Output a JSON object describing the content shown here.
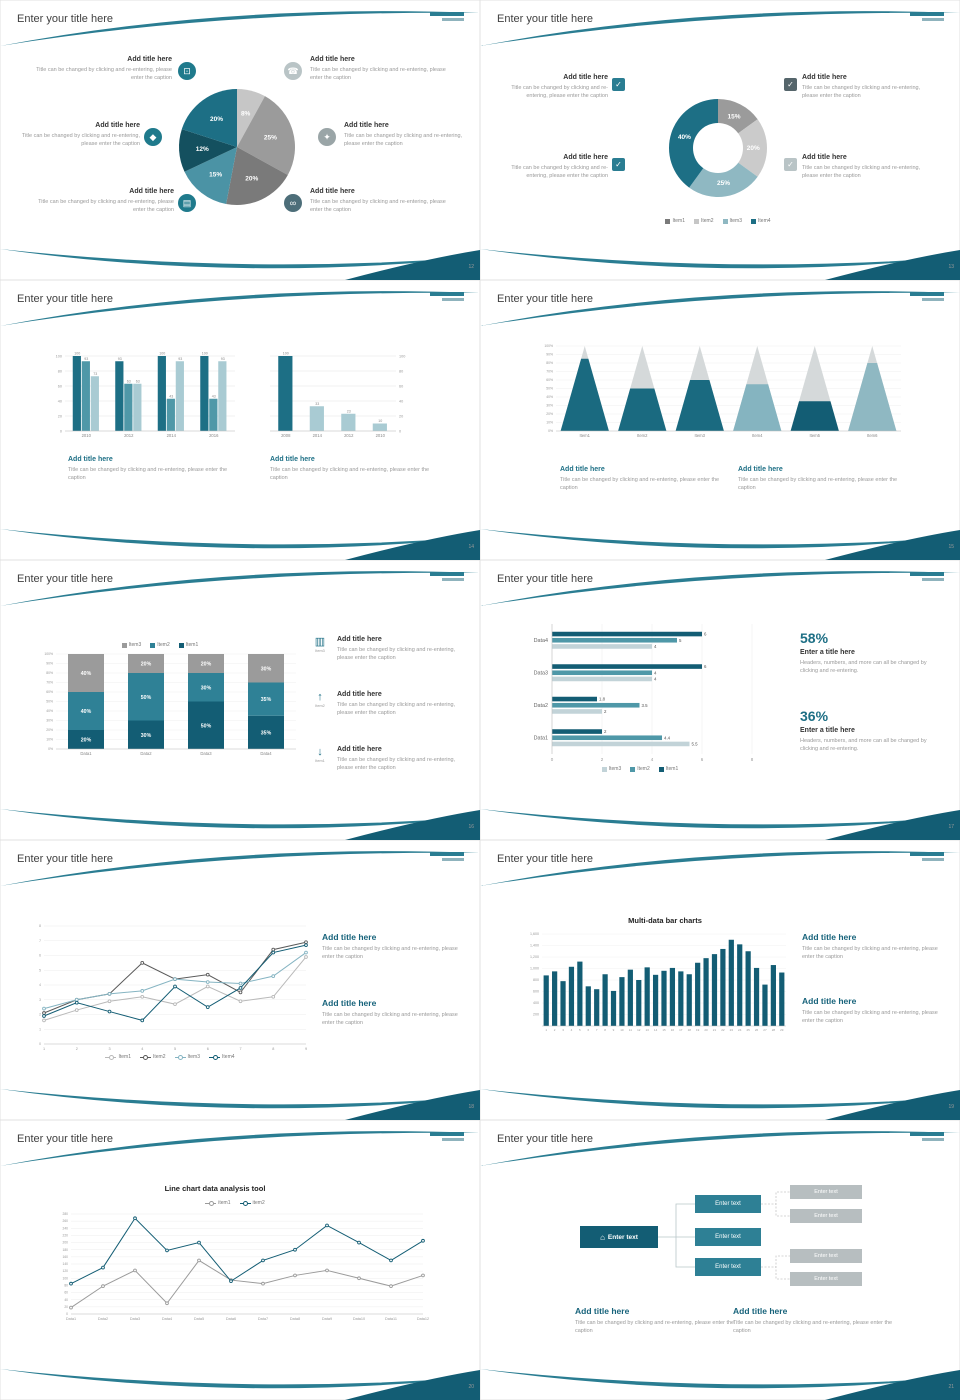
{
  "common": {
    "title": "Enter your title here",
    "add_title": "Add title here",
    "caption": "Title can be changed by clicking and re-entering, please enter the caption",
    "enter_text": "Enter text"
  },
  "icons": {
    "monitor": "⊡",
    "phone": "☎",
    "car": "◆",
    "lock": "✦",
    "book": "▤",
    "bike": "∞",
    "check": "✓",
    "chart": "▥",
    "upload": "↑",
    "download": "↓",
    "home": "⌂"
  },
  "theme": {
    "accent_teal": "#1d6f85",
    "teal_dark": "#135d74",
    "teal_mid": "#4f98a8",
    "teal_light": "#8fb8c2",
    "gray": "#9b9b9b"
  },
  "slides": [
    {
      "page_no": "12",
      "chart_data": {
        "type": "pie",
        "values": [
          8,
          25,
          20,
          15,
          12,
          20
        ],
        "labels": [
          "8%",
          "25%",
          "20%",
          "15%",
          "12%",
          "20%"
        ],
        "colors": [
          "#c6c6c6",
          "#9b9b9b",
          "#7a7a7a",
          "#4b93a5",
          "#14505f",
          "#1d6f85"
        ]
      }
    },
    {
      "page_no": "13",
      "chart_data": {
        "type": "donut",
        "values": [
          15,
          20,
          25,
          40
        ],
        "labels": [
          "15%",
          "20%",
          "25%",
          "40%"
        ],
        "colors": [
          "#9b9b9b",
          "#cbcbcb",
          "#8fb8c2",
          "#1d6f85"
        ],
        "legend": [
          {
            "label": "Item1",
            "color": "#7a7a7a"
          },
          {
            "label": "Item2",
            "color": "#c6c6c6"
          },
          {
            "label": "Item3",
            "color": "#8fb8c2"
          },
          {
            "label": "Item4",
            "color": "#1d6f85"
          }
        ]
      }
    },
    {
      "page_no": "14",
      "chart_data": [
        {
          "type": "bar",
          "categories": [
            "2010",
            "2012",
            "2014",
            "2016"
          ],
          "ylim": [
            0,
            100
          ],
          "yticks": [
            0,
            20,
            40,
            60,
            80,
            100
          ],
          "series": [
            {
              "name": "series1",
              "color": "#1d6f85",
              "values": [
                100,
                93,
                100,
                100
              ]
            },
            {
              "name": "series2",
              "color": "#4f98a8",
              "values": [
                93,
                63,
                43,
                43
              ]
            },
            {
              "name": "series3",
              "color": "#a9cbd3",
              "values": [
                73,
                63,
                93,
                93
              ]
            }
          ]
        },
        {
          "type": "bar",
          "categories": [
            "2008",
            "2014",
            "2012",
            "2010"
          ],
          "ylim": [
            0,
            100
          ],
          "yticks": [
            0,
            20,
            40,
            60,
            80,
            100
          ],
          "ylabels_side": "right",
          "series": [
            {
              "name": "series1",
              "colors": [
                "#1d6f85",
                "#a9cbd3",
                "#a9cbd3",
                "#a9cbd3"
              ],
              "values": [
                100,
                33,
                23,
                10
              ]
            }
          ]
        }
      ]
    },
    {
      "page_no": "15",
      "chart_data": {
        "type": "cone",
        "categories": [
          "Item1",
          "Item2",
          "Item3",
          "Item4",
          "Item5",
          "Item6"
        ],
        "values": [
          85,
          50,
          60,
          55,
          35,
          80
        ],
        "colors": [
          "#1a6a80",
          "#1a6a80",
          "#1a6a80",
          "#85b4c0",
          "#135d74",
          "#8fb8c2"
        ],
        "yticks": [
          "0%",
          "10%",
          "20%",
          "30%",
          "40%",
          "50%",
          "60%",
          "70%",
          "80%",
          "90%",
          "100%"
        ]
      }
    },
    {
      "page_no": "16",
      "chart_data": {
        "type": "stacked",
        "categories": [
          "Data1",
          "Data2",
          "Data3",
          "Data4"
        ],
        "series": [
          {
            "name": "Item1",
            "color": "#135d74",
            "values": [
              20,
              30,
              50,
              35
            ]
          },
          {
            "name": "Item2",
            "color": "#2f8196",
            "values": [
              40,
              50,
              30,
              35
            ]
          },
          {
            "name": "Item3",
            "color": "#9b9b9b",
            "values": [
              40,
              20,
              20,
              30
            ]
          }
        ],
        "yticks": [
          "0%",
          "10%",
          "20%",
          "30%",
          "40%",
          "50%",
          "60%",
          "70%",
          "80%",
          "90%",
          "100%"
        ],
        "legend": [
          {
            "label": "Item3",
            "color": "#9b9b9b"
          },
          {
            "label": "Item2",
            "color": "#2f8196"
          },
          {
            "label": "Item1",
            "color": "#135d74"
          }
        ]
      },
      "features": [
        {
          "icon_label": "Item3"
        },
        {
          "icon_label": "Item2"
        },
        {
          "icon_label": "Item1"
        }
      ]
    },
    {
      "page_no": "17",
      "chart_data": {
        "type": "hbar",
        "categories": [
          "Data1",
          "Data2",
          "Data3",
          "Data4"
        ],
        "series": [
          {
            "name": "Item1",
            "color": "#135d74",
            "values": [
              2,
              1.8,
              6,
              6
            ]
          },
          {
            "name": "Item2",
            "color": "#4f98a8",
            "values": [
              4.4,
              3.5,
              4,
              5
            ]
          },
          {
            "name": "Item3",
            "color": "#c2d3d8",
            "values": [
              5.5,
              2,
              4,
              4
            ]
          }
        ],
        "xticks": [
          0,
          2,
          4,
          6,
          8
        ],
        "legend": [
          {
            "label": "Item3",
            "color": "#c2d3d8"
          },
          {
            "label": "Item2",
            "color": "#4f98a8"
          },
          {
            "label": "Item1",
            "color": "#135d74"
          }
        ]
      },
      "stats": [
        {
          "value": "58%",
          "title": "Enter a title here",
          "text": "Headers, numbers, and more can all be changed by clicking and re-entering."
        },
        {
          "value": "36%",
          "title": "Enter a title here",
          "text": "Headers, numbers, and more can all be changed by clicking and re-entering."
        }
      ]
    },
    {
      "page_no": "18",
      "chart_data": {
        "type": "line",
        "x": [
          "1",
          "2",
          "3",
          "4",
          "5",
          "6",
          "7",
          "8",
          "9"
        ],
        "ylim": [
          0,
          8
        ],
        "yticks": [
          0,
          1,
          2,
          3,
          4,
          5,
          6,
          7,
          8
        ],
        "series": [
          {
            "name": "Item1",
            "color": "#b9b9b9",
            "values": [
              1.6,
              2.3,
              2.9,
              3.2,
              2.7,
              3.9,
              2.9,
              3.2,
              5.9
            ]
          },
          {
            "name": "Item2",
            "color": "#5a5a5a",
            "values": [
              2.1,
              3.0,
              3.4,
              5.5,
              4.4,
              4.7,
              3.5,
              6.4,
              6.9
            ]
          },
          {
            "name": "Item3",
            "color": "#85b4c2",
            "values": [
              2.4,
              3.0,
              3.4,
              3.6,
              4.4,
              4.2,
              4.1,
              4.6,
              6.2
            ]
          },
          {
            "name": "Item4",
            "color": "#135d74",
            "values": [
              1.9,
              2.8,
              2.2,
              1.6,
              3.9,
              2.5,
              3.8,
              6.2,
              6.7
            ]
          }
        ],
        "legend": [
          {
            "label": "Item1",
            "color": "#b9b9b9"
          },
          {
            "label": "Item2",
            "color": "#5a5a5a"
          },
          {
            "label": "Item3",
            "color": "#85b4c2"
          },
          {
            "label": "Item4",
            "color": "#135d74"
          }
        ]
      }
    },
    {
      "page_no": "19",
      "chart_title": "Multi-data bar charts",
      "chart_data": {
        "type": "dense-bar",
        "color": "#135d74",
        "values": [
          880,
          950,
          780,
          1030,
          1120,
          690,
          640,
          900,
          610,
          850,
          980,
          800,
          1020,
          890,
          960,
          1010,
          950,
          900,
          1100,
          1180,
          1250,
          1340,
          1500,
          1420,
          1300,
          1010,
          720,
          1060,
          930
        ],
        "x_labels": [
          "1",
          "2",
          "3",
          "4",
          "5",
          "6",
          "7",
          "8",
          "9",
          "10",
          "11",
          "12",
          "13",
          "14",
          "15",
          "16",
          "17",
          "18",
          "19",
          "20",
          "21",
          "22",
          "23",
          "24",
          "25",
          "26",
          "27",
          "28",
          "29"
        ],
        "yticks": [
          "200",
          "400",
          "600",
          "800",
          "1,000",
          "1,200",
          "1,400",
          "1,600"
        ]
      }
    },
    {
      "page_no": "20",
      "chart_title": "Line chart data analysis tool",
      "chart_data": {
        "type": "line",
        "x": [
          "Data1",
          "Data2",
          "Data3",
          "Data4",
          "Data5",
          "Data6",
          "Data7",
          "Data8",
          "Data9",
          "Data10",
          "Data11",
          "Data12"
        ],
        "ylim": [
          0,
          280
        ],
        "yticks": [
          0,
          20,
          40,
          60,
          80,
          100,
          120,
          140,
          160,
          180,
          200,
          220,
          240,
          260,
          280
        ],
        "series": [
          {
            "name": "item1",
            "color": "#9b9b9b",
            "values": [
              18,
              78,
              122,
              30,
              150,
              95,
              85,
              108,
              122,
              100,
              78,
              108
            ]
          },
          {
            "name": "item2",
            "color": "#135d74",
            "values": [
              85,
              130,
              268,
              178,
              200,
              92,
              150,
              180,
              248,
              200,
              150,
              205
            ]
          }
        ],
        "legend": [
          {
            "label": "item1",
            "color": "#9b9b9b"
          },
          {
            "label": "item2",
            "color": "#135d74"
          }
        ]
      }
    },
    {
      "page_no": "21",
      "diagram": {
        "root_label": "Enter text",
        "mid_labels": [
          "Enter text",
          "Enter text",
          "Enter text"
        ],
        "leaf_labels": [
          "Enter text",
          "Enter text",
          "Enter text",
          "Enter text"
        ]
      }
    }
  ]
}
